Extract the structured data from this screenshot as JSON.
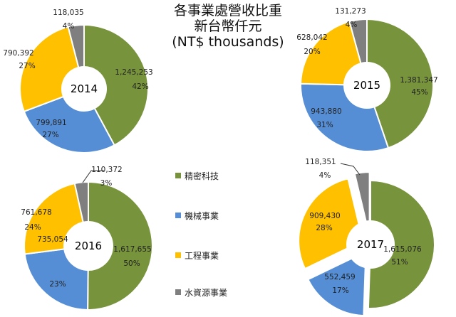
{
  "title_lines": [
    "各事業處營收比重",
    "新台幣仟元",
    "(NT$ thousands)"
  ],
  "colors": {
    "精密科技": "#77933c",
    "機械事業": "#558ed5",
    "工程事業": "#ffc000",
    "水資源事業": "#7f7f7f"
  },
  "legend": [
    "精密科技",
    "機械事業",
    "工程事業",
    "水資源事業"
  ],
  "chart_data": [
    {
      "type": "pie",
      "year": "2014",
      "categories": [
        "精密科技",
        "機械事業",
        "工程事業",
        "水資源事業"
      ],
      "values": [
        1245253,
        799891,
        790392,
        118035
      ],
      "value_labels": [
        "1,245,253",
        "799,891",
        "790,392",
        "118,035"
      ],
      "percent_labels": [
        "42%",
        "27%",
        "27%",
        "4%"
      ]
    },
    {
      "type": "pie",
      "year": "2015",
      "categories": [
        "精密科技",
        "機械事業",
        "工程事業",
        "水資源事業"
      ],
      "values": [
        1381347,
        943880,
        628042,
        131273
      ],
      "value_labels": [
        "1,381,347",
        "943,880",
        "628,042",
        "131,273"
      ],
      "percent_labels": [
        "45%",
        "31%",
        "20%",
        "4%"
      ]
    },
    {
      "type": "pie",
      "year": "2016",
      "categories": [
        "精密科技",
        "機械事業",
        "工程事業",
        "水資源事業"
      ],
      "values": [
        1617655,
        735054,
        761678,
        110372
      ],
      "value_labels": [
        "1,617,655",
        "735,054",
        "761,678",
        "110,372"
      ],
      "percent_labels": [
        "50%",
        "23%",
        "24%",
        "3%"
      ]
    },
    {
      "type": "pie",
      "year": "2017",
      "categories": [
        "精密科技",
        "機械事業",
        "工程事業",
        "水資源事業"
      ],
      "values": [
        1615076,
        552459,
        909430,
        118351
      ],
      "value_labels": [
        "1,615,076",
        "552,459",
        "909,430",
        "118,351"
      ],
      "percent_labels": [
        "51%",
        "17%",
        "28%",
        "4%"
      ]
    }
  ]
}
